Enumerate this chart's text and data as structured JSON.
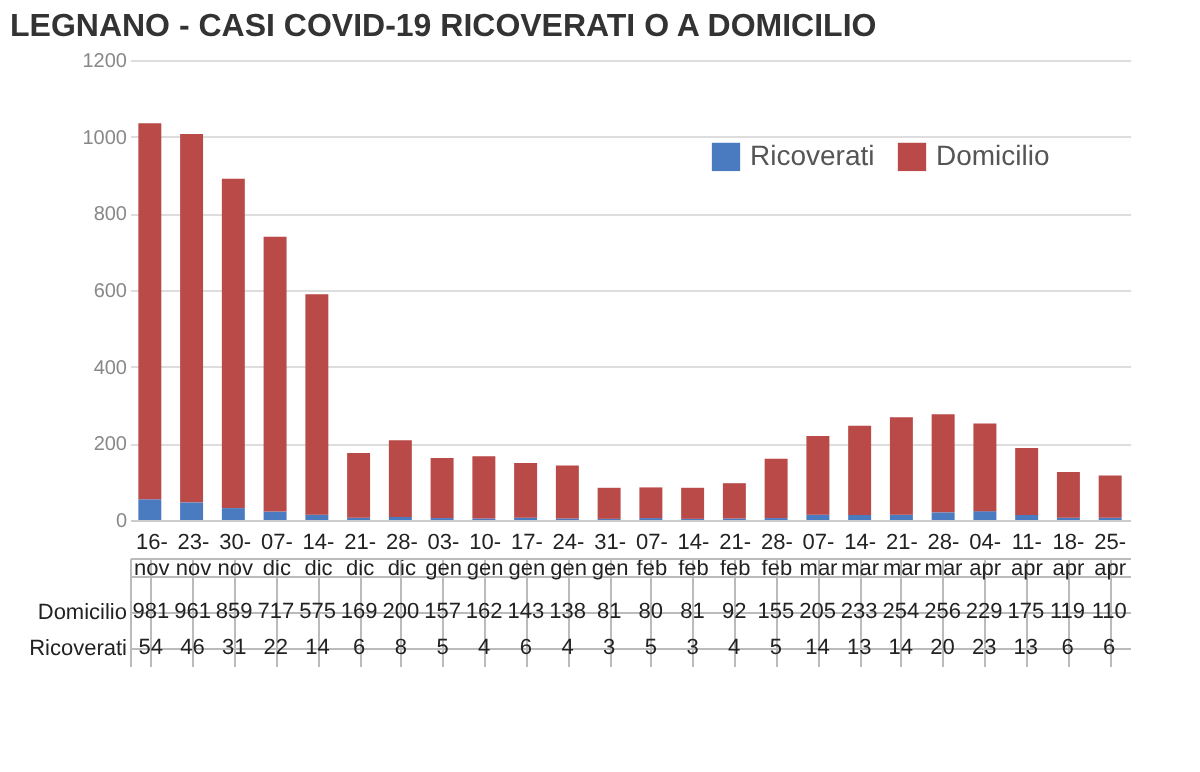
{
  "chart_data": {
    "type": "bar",
    "title": "LEGNANO - CASI COVID-19 RICOVERATI O A DOMICILIO",
    "stacked": true,
    "categories": [
      "16-nov",
      "23-nov",
      "30-nov",
      "07-dic",
      "14-dic",
      "21-dic",
      "28-dic",
      "03-gen",
      "10-gen",
      "17-gen",
      "24-gen",
      "31-gen",
      "07-feb",
      "14-feb",
      "21-feb",
      "28-feb",
      "07-mar",
      "14-mar",
      "21-mar",
      "28-mar",
      "04-apr",
      "11-apr",
      "18-apr",
      "25-apr"
    ],
    "series": [
      {
        "name": "Ricoverati",
        "color": "#4a7ac0",
        "values": [
          54,
          46,
          31,
          22,
          14,
          6,
          8,
          5,
          4,
          6,
          4,
          3,
          5,
          3,
          4,
          5,
          14,
          13,
          14,
          20,
          23,
          13,
          6,
          6
        ]
      },
      {
        "name": "Domicilio",
        "color": "#b94a48",
        "values": [
          981,
          961,
          859,
          717,
          575,
          169,
          200,
          157,
          162,
          143,
          138,
          81,
          80,
          81,
          92,
          155,
          205,
          233,
          254,
          256,
          229,
          175,
          119,
          110
        ]
      }
    ],
    "ylim": [
      0,
      1200
    ],
    "yticks": [
      0,
      200,
      400,
      600,
      800,
      1000,
      1200
    ],
    "grid": "y",
    "legend": "top right",
    "data_labels": true
  }
}
